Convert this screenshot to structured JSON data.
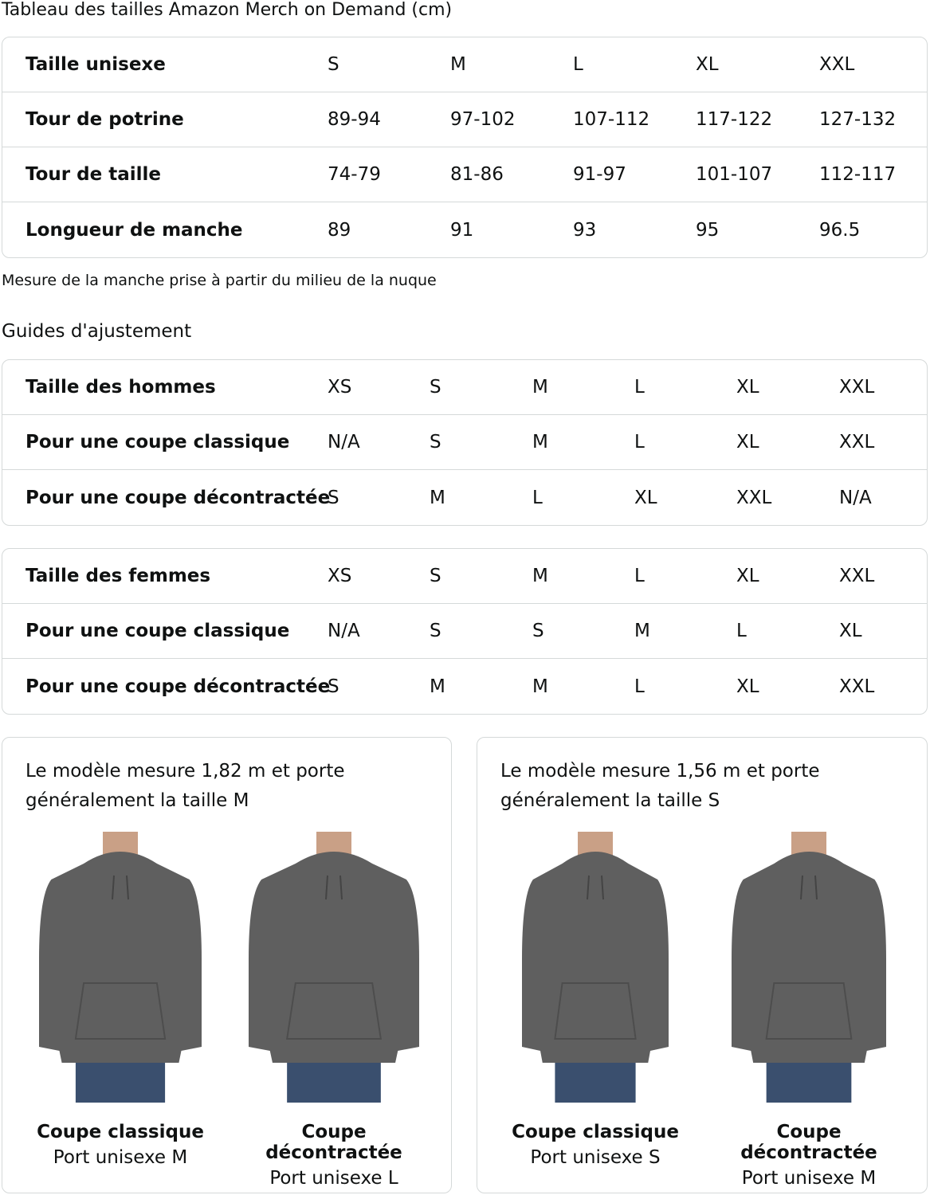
{
  "title": "Tableau des tailles Amazon Merch on Demand (cm)",
  "size_table": {
    "rows": [
      {
        "label": "Taille unisexe",
        "values": [
          "S",
          "M",
          "L",
          "XL",
          "XXL"
        ]
      },
      {
        "label": "Tour de potrine",
        "values": [
          "89-94",
          "97-102",
          "107-112",
          "117-122",
          "127-132"
        ]
      },
      {
        "label": "Tour de taille",
        "values": [
          "74-79",
          "81-86",
          "91-97",
          "101-107",
          "112-117"
        ]
      },
      {
        "label": "Longueur de manche",
        "values": [
          "89",
          "91",
          "93",
          "95",
          "96.5"
        ]
      }
    ]
  },
  "note": "Mesure de la manche prise à partir du milieu de la nuque",
  "guide_title": "Guides d'ajustement",
  "men_table": {
    "rows": [
      {
        "label": "Taille des hommes",
        "values": [
          "XS",
          "S",
          "M",
          "L",
          "XL",
          "XXL"
        ]
      },
      {
        "label": "Pour une coupe classique",
        "values": [
          "N/A",
          "S",
          "M",
          "L",
          "XL",
          "XXL"
        ]
      },
      {
        "label": "Pour une coupe décontractée",
        "values": [
          "S",
          "M",
          "L",
          "XL",
          "XXL",
          "N/A"
        ]
      }
    ]
  },
  "women_table": {
    "rows": [
      {
        "label": "Taille des femmes",
        "values": [
          "XS",
          "S",
          "M",
          "L",
          "XL",
          "XXL"
        ]
      },
      {
        "label": "Pour une coupe classique",
        "values": [
          "N/A",
          "S",
          "S",
          "M",
          "L",
          "XL"
        ]
      },
      {
        "label": "Pour une coupe décontractée",
        "values": [
          "S",
          "M",
          "M",
          "L",
          "XL",
          "XXL"
        ]
      }
    ]
  },
  "cards": [
    {
      "text": "Le modèle mesure 1,82 m et porte généralement la taille M",
      "figures": [
        {
          "fit": "Coupe classique",
          "size": "Port unisexe M"
        },
        {
          "fit": "Coupe décontractée",
          "size": "Port unisexe L"
        }
      ]
    },
    {
      "text": "Le modèle mesure 1,56 m et porte généralement la taille S",
      "figures": [
        {
          "fit": "Coupe classique",
          "size": "Port unisexe S"
        },
        {
          "fit": "Coupe décontractée",
          "size": "Port unisexe M"
        }
      ]
    }
  ],
  "colors": {
    "border": "#d5d9d9",
    "text": "#0f1111",
    "hoodie": "#5f5f5f",
    "jeans": "#3a4f6e"
  }
}
